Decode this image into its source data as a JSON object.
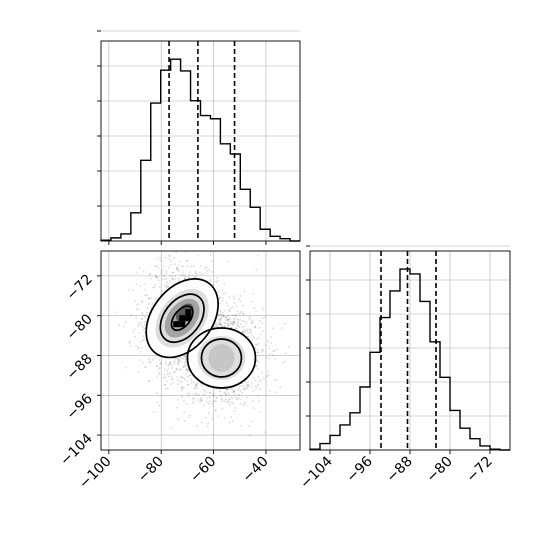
{
  "chart_data": [
    {
      "type": "histogram",
      "panel": "marginal-x",
      "xlim": [
        -103,
        -27
      ],
      "quantiles": [
        -77,
        -66,
        -52
      ],
      "bin_edges": [
        -103,
        -99.2,
        -95.4,
        -91.6,
        -87.8,
        -84,
        -80.2,
        -76.4,
        -72.6,
        -68.8,
        -65,
        -61.2,
        -57.4,
        -53.6,
        -49.8,
        -46,
        -42.2,
        -38.4,
        -34.6,
        -30.8,
        -27
      ],
      "counts": [
        1,
        4,
        9,
        36,
        103,
        176,
        218,
        232,
        217,
        179,
        160,
        156,
        124,
        111,
        66,
        43,
        15,
        6,
        3,
        0
      ],
      "grid": true,
      "y_tick_count": 6
    },
    {
      "type": "histogram2d_contour",
      "panel": "joint",
      "xlim": [
        -103,
        -27
      ],
      "ylim": [
        -107,
        -67
      ],
      "x_ticks": [
        -100,
        -80,
        -60,
        -40
      ],
      "y_ticks": [
        -72,
        -80,
        -88,
        -96,
        -104
      ],
      "x_tick_labels": [
        "−100",
        "−80",
        "−60",
        "−40"
      ],
      "y_tick_labels": [
        "−72",
        "−80",
        "−88",
        "−96",
        "−104"
      ],
      "modes": [
        {
          "x": -72,
          "y": -80.5,
          "sx": 7,
          "sy": 5
        },
        {
          "x": -57,
          "y": -88.5,
          "sx": 7,
          "sy": 4.5
        }
      ],
      "grid": true
    },
    {
      "type": "histogram",
      "panel": "marginal-y",
      "xlim": [
        -108,
        -68
      ],
      "quantiles": [
        -93.8,
        -88.5,
        -82.8
      ],
      "bin_edges": [
        -108,
        -106,
        -104,
        -102,
        -100,
        -98,
        -96,
        -94,
        -92,
        -90,
        -88,
        -86,
        -84,
        -82,
        -80,
        -78,
        -76,
        -74,
        -72,
        -70,
        -68
      ],
      "counts": [
        1,
        8,
        18,
        31,
        46,
        78,
        121,
        164,
        197,
        224,
        218,
        184,
        134,
        90,
        49,
        27,
        14,
        5,
        1,
        0
      ],
      "x_ticks": [
        -104,
        -96,
        -88,
        -80,
        -72
      ],
      "x_tick_labels": [
        "−104",
        "−96",
        "−88",
        "−80",
        "−72"
      ],
      "grid": true,
      "y_tick_count": 6
    }
  ]
}
